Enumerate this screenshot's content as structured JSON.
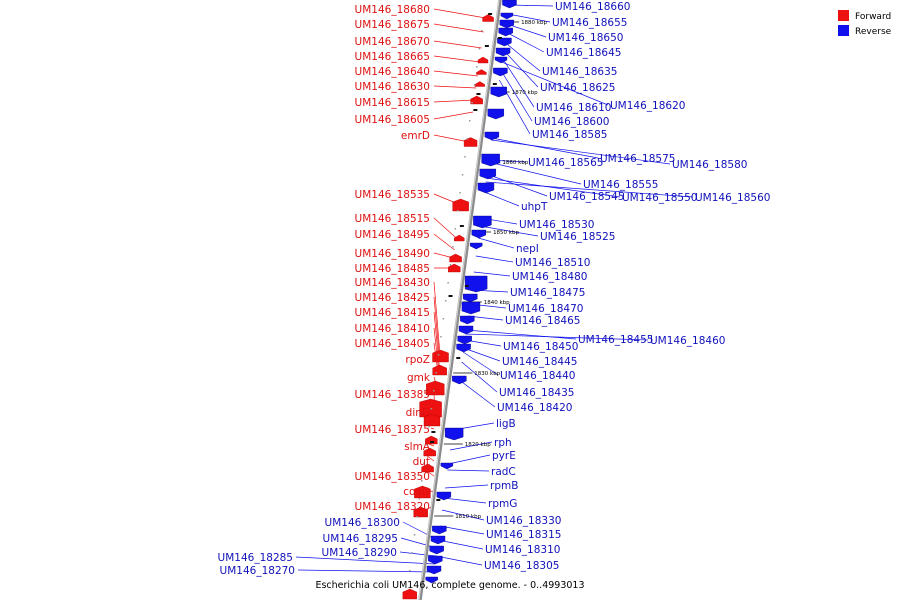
{
  "caption": "Escherichia coli UM146, complete genome. - 0..4993013",
  "legend": [
    {
      "label": "Forward",
      "color": "#ee1111"
    },
    {
      "label": "Reverse",
      "color": "#1111ee"
    }
  ],
  "colors": {
    "forward": "#ee1111",
    "reverse": "#1111ee",
    "backbone": "#888888"
  },
  "ticks": [
    "1880 kbp",
    "1870 kbp",
    "1860 kbp",
    "1850 kbp",
    "1840 kbp",
    "1830 kbp",
    "1820 kbp",
    "1810 kbp"
  ],
  "forward_labels": [
    "UM146_18680",
    "UM146_18675",
    "UM146_18670",
    "UM146_18665",
    "UM146_18640",
    "UM146_18630",
    "UM146_18615",
    "UM146_18605",
    "emrD",
    "UM146_18535",
    "UM146_18515",
    "UM146_18495",
    "UM146_18490",
    "UM146_18485",
    "UM146_18430",
    "UM146_18425",
    "UM146_18415",
    "UM146_18410",
    "UM146_18405",
    "rpoZ",
    "gmk",
    "UM146_18385",
    "dinD",
    "UM146_18375",
    "slmA",
    "dut",
    "UM146_18350",
    "coaD",
    "UM146_18320"
  ],
  "reverse_labels_left": [
    "UM146_18300",
    "UM146_18295",
    "UM146_18290",
    "UM146_18285",
    "UM146_18270"
  ],
  "reverse_labels": [
    "UM146_18660",
    "UM146_18655",
    "UM146_18650",
    "UM146_18645",
    "UM146_18635",
    "UM146_18625",
    "UM146_18610",
    "UM146_18620",
    "UM146_18600",
    "UM146_18585",
    "UM146_18575",
    "UM146_18565",
    "UM146_18580",
    "UM146_18555",
    "UM146_18545",
    "UM146_18550",
    "UM146_18560",
    "uhpT",
    "UM146_18530",
    "UM146_18525",
    "nepI",
    "UM146_18510",
    "UM146_18480",
    "UM146_18475",
    "UM146_18470",
    "UM146_18465",
    "UM146_18455",
    "UM146_18460",
    "UM146_18450",
    "UM146_18445",
    "UM146_18440",
    "UM146_18435",
    "UM146_18420",
    "ligB",
    "rph",
    "pyrE",
    "radC",
    "rpmB",
    "rpmG",
    "UM146_18330",
    "UM146_18315",
    "UM146_18310",
    "UM146_18305"
  ]
}
